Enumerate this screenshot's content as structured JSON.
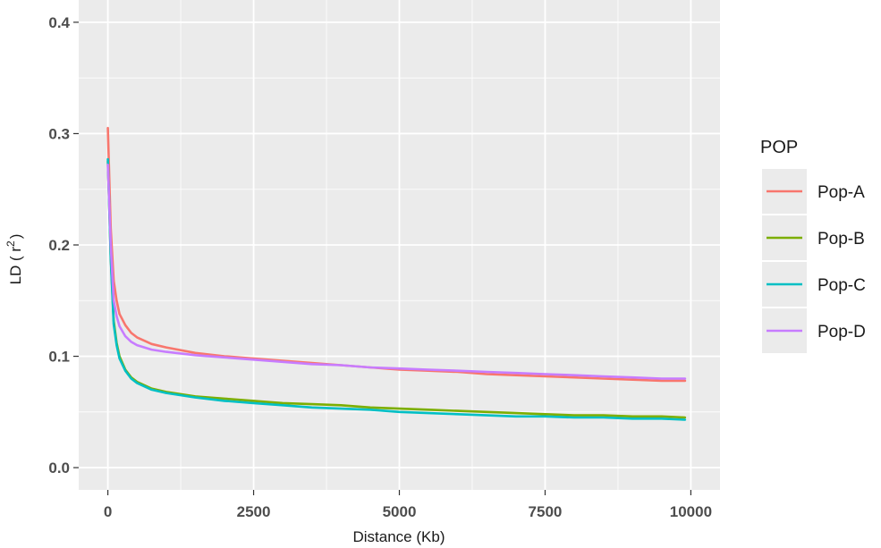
{
  "chart_data": {
    "type": "line",
    "xlabel": "Distance (Kb)",
    "ylabel_main": "LD ( r",
    "ylabel_sup": "2",
    "ylabel_close": ")",
    "xlim": [
      -500,
      10500
    ],
    "ylim": [
      -0.02,
      0.42
    ],
    "x_ticks": [
      0,
      2500,
      5000,
      7500,
      10000
    ],
    "x_tick_labels": [
      "0",
      "2500",
      "5000",
      "7500",
      "10000"
    ],
    "y_ticks": [
      0.0,
      0.1,
      0.2,
      0.3,
      0.4
    ],
    "y_tick_labels": [
      "0.0",
      "0.1",
      "0.2",
      "0.3",
      "0.4"
    ],
    "grid": true,
    "legend_position": "right",
    "legend_title": "POP",
    "x": [
      0,
      50,
      100,
      150,
      200,
      300,
      400,
      500,
      750,
      1000,
      1500,
      2000,
      2500,
      3000,
      3500,
      4000,
      4500,
      5000,
      5500,
      6000,
      6500,
      7000,
      7500,
      8000,
      8500,
      9000,
      9500,
      9900
    ],
    "series": [
      {
        "name": "Pop-A",
        "color": "#F8766D",
        "values": [
          0.305,
          0.215,
          0.168,
          0.15,
          0.138,
          0.128,
          0.121,
          0.117,
          0.111,
          0.108,
          0.103,
          0.1,
          0.098,
          0.096,
          0.094,
          0.092,
          0.09,
          0.088,
          0.087,
          0.086,
          0.084,
          0.083,
          0.082,
          0.081,
          0.08,
          0.079,
          0.078,
          0.078
        ]
      },
      {
        "name": "Pop-B",
        "color": "#7CAE00",
        "values": [
          0.275,
          0.19,
          0.132,
          0.112,
          0.1,
          0.088,
          0.081,
          0.077,
          0.071,
          0.068,
          0.064,
          0.062,
          0.06,
          0.058,
          0.057,
          0.056,
          0.054,
          0.053,
          0.052,
          0.051,
          0.05,
          0.049,
          0.048,
          0.047,
          0.047,
          0.046,
          0.046,
          0.045
        ]
      },
      {
        "name": "Pop-C",
        "color": "#00BFC4",
        "values": [
          0.277,
          0.188,
          0.129,
          0.11,
          0.098,
          0.087,
          0.08,
          0.076,
          0.07,
          0.067,
          0.063,
          0.06,
          0.058,
          0.056,
          0.054,
          0.053,
          0.052,
          0.05,
          0.049,
          0.048,
          0.047,
          0.046,
          0.046,
          0.045,
          0.045,
          0.044,
          0.044,
          0.043
        ]
      },
      {
        "name": "Pop-D",
        "color": "#C77CFF",
        "values": [
          0.272,
          0.2,
          0.15,
          0.136,
          0.127,
          0.118,
          0.113,
          0.11,
          0.106,
          0.104,
          0.101,
          0.099,
          0.097,
          0.095,
          0.093,
          0.092,
          0.09,
          0.089,
          0.088,
          0.087,
          0.086,
          0.085,
          0.084,
          0.083,
          0.082,
          0.081,
          0.08,
          0.08
        ]
      }
    ]
  }
}
